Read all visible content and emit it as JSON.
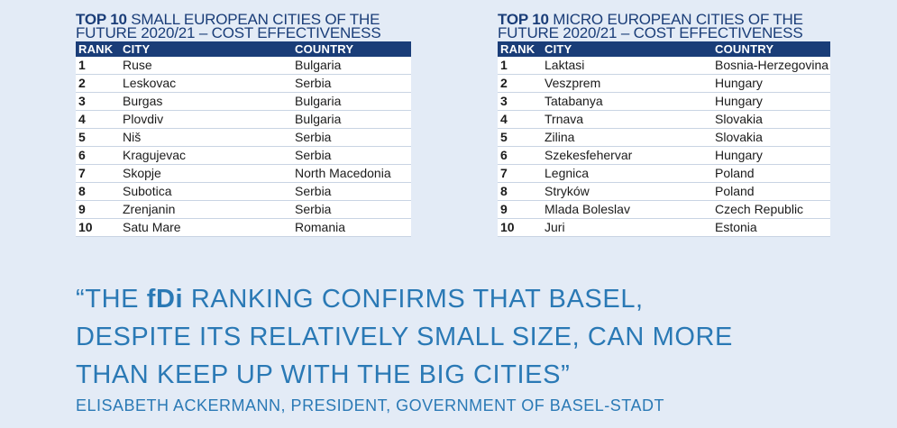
{
  "colors": {
    "navy": "#1a3d78",
    "accent_blue": "#2a79b5",
    "background": "#e3ebf6"
  },
  "tables": [
    {
      "title_tag": "TOP 10",
      "title_rest": "SMALL EUROPEAN CITIES OF THE",
      "title_line2": "FUTURE 2020/21 – COST EFFECTIVENESS",
      "headers": {
        "rank": "RANK",
        "city": "CITY",
        "country": "COUNTRY"
      },
      "rows": [
        {
          "rank": "1",
          "city": "Ruse",
          "country": "Bulgaria"
        },
        {
          "rank": "2",
          "city": "Leskovac",
          "country": "Serbia"
        },
        {
          "rank": "3",
          "city": "Burgas",
          "country": "Bulgaria"
        },
        {
          "rank": "4",
          "city": "Plovdiv",
          "country": "Bulgaria"
        },
        {
          "rank": "5",
          "city": "Niš",
          "country": "Serbia"
        },
        {
          "rank": "6",
          "city": "Kragujevac",
          "country": "Serbia"
        },
        {
          "rank": "7",
          "city": "Skopje",
          "country": "North Macedonia"
        },
        {
          "rank": "8",
          "city": "Subotica",
          "country": "Serbia"
        },
        {
          "rank": "9",
          "city": "Zrenjanin",
          "country": "Serbia"
        },
        {
          "rank": "10",
          "city": "Satu Mare",
          "country": "Romania"
        }
      ]
    },
    {
      "title_tag": "TOP 10",
      "title_rest": "MICRO EUROPEAN CITIES OF THE",
      "title_line2": "FUTURE 2020/21 – COST EFFECTIVENESS",
      "headers": {
        "rank": "RANK",
        "city": "CITY",
        "country": "COUNTRY"
      },
      "rows": [
        {
          "rank": "1",
          "city": "Laktasi",
          "country": "Bosnia-Herzegovina"
        },
        {
          "rank": "2",
          "city": "Veszprem",
          "country": "Hungary"
        },
        {
          "rank": "3",
          "city": "Tatabanya",
          "country": "Hungary"
        },
        {
          "rank": "4",
          "city": "Trnava",
          "country": "Slovakia"
        },
        {
          "rank": "5",
          "city": "Zilina",
          "country": "Slovakia"
        },
        {
          "rank": "6",
          "city": "Szekesfehervar",
          "country": "Hungary"
        },
        {
          "rank": "7",
          "city": "Legnica",
          "country": "Poland"
        },
        {
          "rank": "8",
          "city": "Stryków",
          "country": "Poland"
        },
        {
          "rank": "9",
          "city": "Mlada Boleslav",
          "country": "Czech Republic"
        },
        {
          "rank": "10",
          "city": "Juri",
          "country": "Estonia"
        }
      ]
    }
  ],
  "quote": {
    "open": "“THE",
    "brand": "fDi",
    "text": "RANKING CONFIRMS THAT BASEL, DESPITE ITS RELATIVELY SMALL SIZE, CAN MORE THAN KEEP UP WITH THE BIG CITIES”"
  },
  "attribution": "ELISABETH ACKERMANN, PRESIDENT, GOVERNMENT OF BASEL-STADT"
}
